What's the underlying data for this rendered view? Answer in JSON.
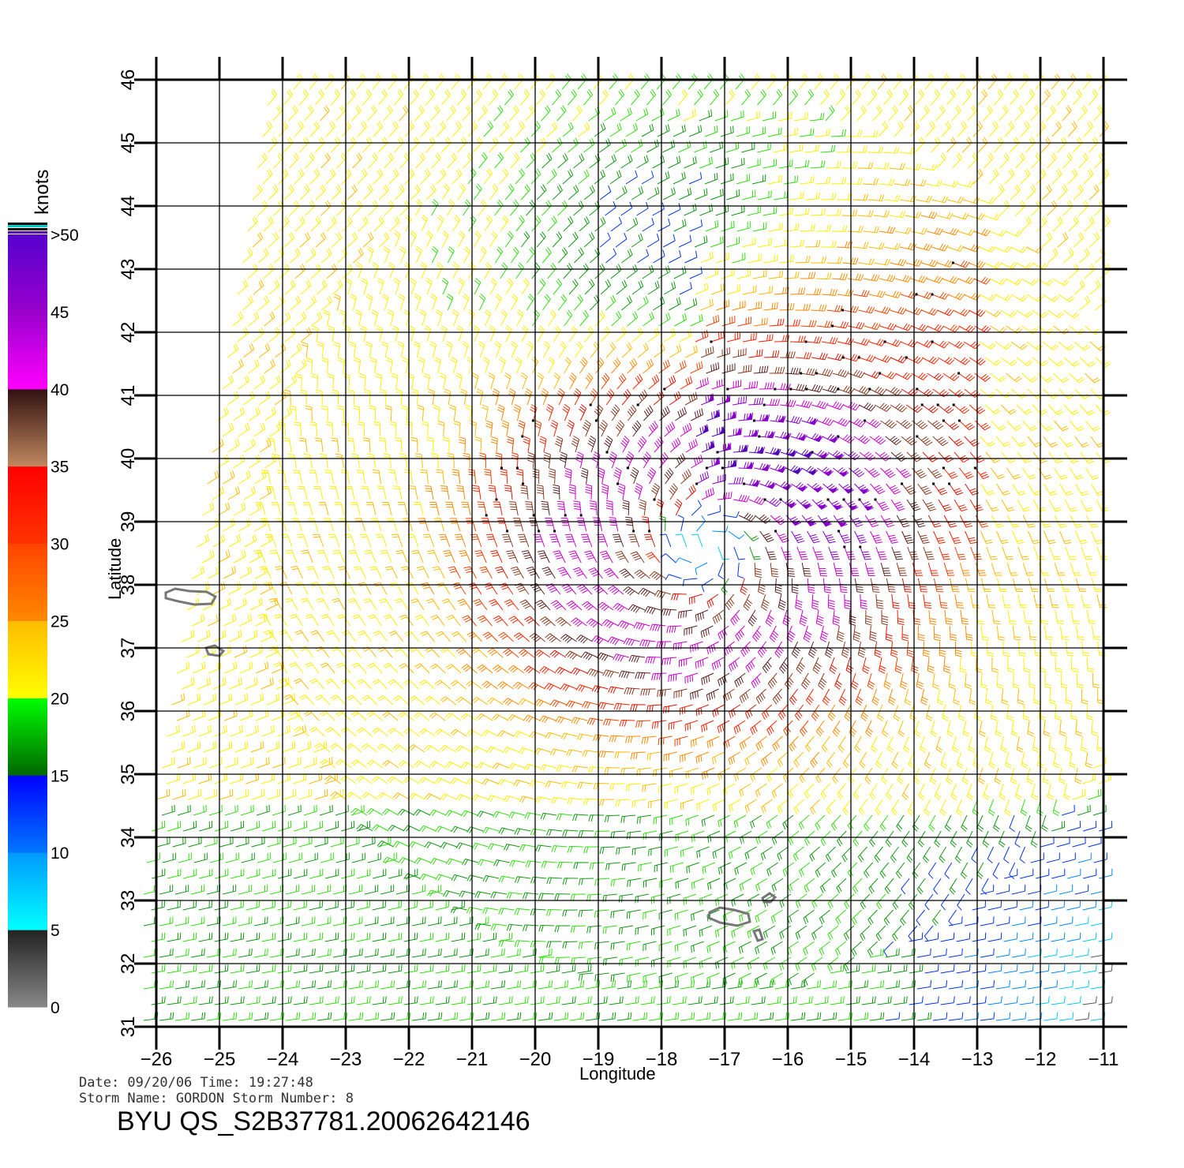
{
  "map": {
    "x_axis_title": "Longitude",
    "y_axis_title": "Latitude",
    "lon_ticks": [
      "−26",
      "−25",
      "−24",
      "−23",
      "−22",
      "−21",
      "−20",
      "−19",
      "−18",
      "−17",
      "−16",
      "−15",
      "−14",
      "−13",
      "−12",
      "−11"
    ],
    "lat_ticks": [
      "31",
      "32",
      "33",
      "34",
      "35",
      "36",
      "37",
      "38",
      "39",
      "40",
      "41",
      "42",
      "43",
      "44",
      "45",
      "46"
    ],
    "lon_range": [
      -26,
      -11
    ],
    "lat_range": [
      31,
      46
    ],
    "grid": true,
    "storm_center": {
      "lon": -17.3,
      "lat": 38.6
    },
    "land_color": "#777777"
  },
  "colorbar": {
    "unit_label": "knots",
    "labels": [
      "0",
      "5",
      "10",
      "15",
      "20",
      "25",
      "30",
      "35",
      "40",
      "45",
      ">50"
    ],
    "bands": [
      {
        "from": 0,
        "to": 5,
        "colors": [
          "#888888",
          "#222222"
        ]
      },
      {
        "from": 5,
        "to": 10,
        "colors": [
          "#00ffff",
          "#0099ff"
        ]
      },
      {
        "from": 10,
        "to": 15,
        "colors": [
          "#0077ff",
          "#0000ff"
        ]
      },
      {
        "from": 15,
        "to": 20,
        "colors": [
          "#006600",
          "#00ff00"
        ]
      },
      {
        "from": 20,
        "to": 25,
        "colors": [
          "#ffff00",
          "#ffbb00"
        ]
      },
      {
        "from": 25,
        "to": 30,
        "colors": [
          "#ff8800",
          "#ff4400"
        ]
      },
      {
        "from": 30,
        "to": 35,
        "colors": [
          "#ff3300",
          "#ff0000"
        ]
      },
      {
        "from": 35,
        "to": 40,
        "colors": [
          "#c08860",
          "#301010"
        ]
      },
      {
        "from": 40,
        "to": 45,
        "colors": [
          "#ff00ff",
          "#9900cc"
        ]
      },
      {
        "from": 45,
        "to": 50,
        "colors": [
          "#9900cc",
          "#5500cc"
        ]
      }
    ]
  },
  "info": {
    "date_time": "Date: 09/20/06   Time: 19:27:48",
    "storm": "Storm  Name: GORDON   Storm  Number: 8",
    "file_id": "BYU  QS_S2B37781.20062642146"
  }
}
